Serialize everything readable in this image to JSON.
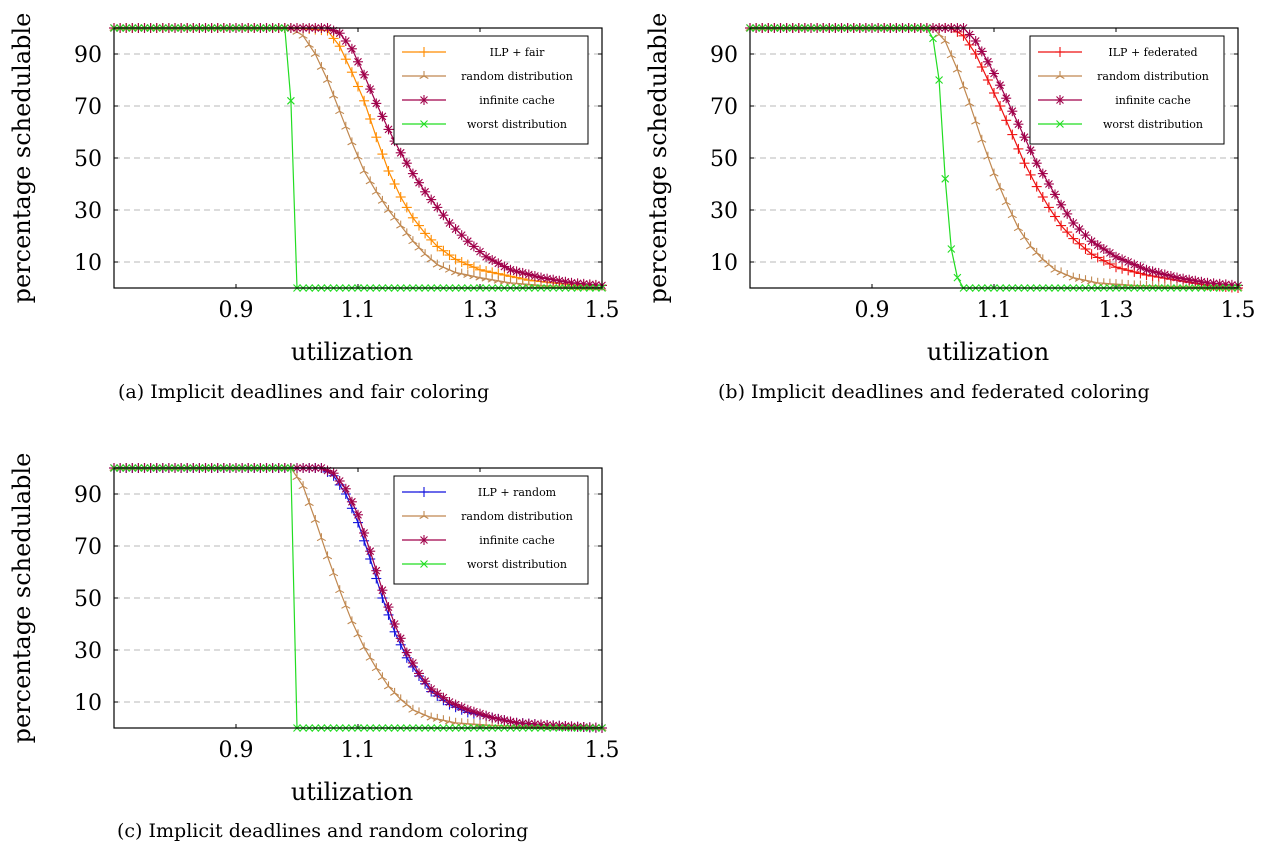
{
  "chart_data": [
    {
      "type": "line",
      "caption": "(a) Implicit deadlines and fair coloring",
      "xlabel": "utilization",
      "ylabel": "percentage schedulable",
      "xlim": [
        0.7,
        1.5
      ],
      "ylim": [
        0,
        100
      ],
      "xticks": [
        "0.9",
        "1.1",
        "1.3",
        "1.5"
      ],
      "yticks": [
        "10",
        "30",
        "50",
        "70",
        "90"
      ],
      "grid": "horizontal dashed",
      "legend_position": "top-right",
      "series": [
        {
          "name": "ILP + fair",
          "color": "#ff8c00",
          "marker": "plus",
          "points": [
            [
              0.7,
              100
            ],
            [
              1.0,
              100
            ],
            [
              1.05,
              99
            ],
            [
              1.07,
              93
            ],
            [
              1.09,
              83
            ],
            [
              1.11,
              72
            ],
            [
              1.13,
              58
            ],
            [
              1.15,
              45
            ],
            [
              1.17,
              35
            ],
            [
              1.19,
              27
            ],
            [
              1.21,
              21
            ],
            [
              1.23,
              16
            ],
            [
              1.26,
              11
            ],
            [
              1.3,
              7
            ],
            [
              1.34,
              5
            ],
            [
              1.38,
              3
            ],
            [
              1.42,
              2
            ],
            [
              1.46,
              1
            ],
            [
              1.5,
              1
            ]
          ]
        },
        {
          "name": "random distribution",
          "color": "#c08850",
          "marker": "star3",
          "points": [
            [
              0.7,
              100
            ],
            [
              0.99,
              100
            ],
            [
              1.01,
              97
            ],
            [
              1.03,
              90
            ],
            [
              1.05,
              80
            ],
            [
              1.07,
              68
            ],
            [
              1.09,
              56
            ],
            [
              1.11,
              45
            ],
            [
              1.13,
              37
            ],
            [
              1.15,
              30
            ],
            [
              1.17,
              24
            ],
            [
              1.19,
              18
            ],
            [
              1.21,
              13
            ],
            [
              1.23,
              9
            ],
            [
              1.26,
              6
            ],
            [
              1.3,
              4
            ],
            [
              1.35,
              2
            ],
            [
              1.4,
              1
            ],
            [
              1.5,
              0
            ]
          ]
        },
        {
          "name": "infinite cache",
          "color": "#a0004a",
          "marker": "star",
          "points": [
            [
              0.7,
              100
            ],
            [
              1.05,
              100
            ],
            [
              1.07,
              98
            ],
            [
              1.09,
              92
            ],
            [
              1.11,
              82
            ],
            [
              1.13,
              71
            ],
            [
              1.15,
              61
            ],
            [
              1.17,
              52
            ],
            [
              1.19,
              44
            ],
            [
              1.21,
              37
            ],
            [
              1.23,
              31
            ],
            [
              1.25,
              25
            ],
            [
              1.28,
              18
            ],
            [
              1.31,
              12
            ],
            [
              1.35,
              7
            ],
            [
              1.4,
              4
            ],
            [
              1.45,
              2
            ],
            [
              1.5,
              1
            ]
          ]
        },
        {
          "name": "worst distribution",
          "color": "#22dd22",
          "marker": "cross",
          "points": [
            [
              0.7,
              100
            ],
            [
              0.98,
              100
            ],
            [
              0.99,
              72
            ],
            [
              1.0,
              0
            ],
            [
              1.5,
              0
            ]
          ]
        }
      ]
    },
    {
      "type": "line",
      "caption": "(b) Implicit deadlines and federated coloring",
      "xlabel": "utilization",
      "ylabel": "percentage schedulable",
      "xlim": [
        0.7,
        1.5
      ],
      "ylim": [
        0,
        100
      ],
      "xticks": [
        "0.9",
        "1.1",
        "1.3",
        "1.5"
      ],
      "yticks": [
        "10",
        "30",
        "50",
        "70",
        "90"
      ],
      "grid": "horizontal dashed",
      "legend_position": "top-right",
      "series": [
        {
          "name": "ILP + federated",
          "color": "#ee1111",
          "marker": "plus",
          "points": [
            [
              0.7,
              100
            ],
            [
              1.03,
              100
            ],
            [
              1.05,
              97
            ],
            [
              1.07,
              90
            ],
            [
              1.09,
              80
            ],
            [
              1.11,
              70
            ],
            [
              1.13,
              59
            ],
            [
              1.15,
              48
            ],
            [
              1.17,
              39
            ],
            [
              1.19,
              31
            ],
            [
              1.21,
              24
            ],
            [
              1.23,
              19
            ],
            [
              1.26,
              13
            ],
            [
              1.3,
              8
            ],
            [
              1.35,
              5
            ],
            [
              1.4,
              3
            ],
            [
              1.45,
              1
            ],
            [
              1.5,
              0
            ]
          ]
        },
        {
          "name": "random distribution",
          "color": "#c08850",
          "marker": "star3",
          "points": [
            [
              0.7,
              100
            ],
            [
              1.0,
              100
            ],
            [
              1.02,
              95
            ],
            [
              1.04,
              84
            ],
            [
              1.06,
              71
            ],
            [
              1.08,
              57
            ],
            [
              1.1,
              44
            ],
            [
              1.12,
              33
            ],
            [
              1.14,
              23
            ],
            [
              1.16,
              16
            ],
            [
              1.18,
              11
            ],
            [
              1.2,
              7
            ],
            [
              1.23,
              4
            ],
            [
              1.27,
              2
            ],
            [
              1.33,
              1
            ],
            [
              1.5,
              0
            ]
          ]
        },
        {
          "name": "infinite cache",
          "color": "#a0004a",
          "marker": "star",
          "points": [
            [
              0.7,
              100
            ],
            [
              1.05,
              100
            ],
            [
              1.07,
              95
            ],
            [
              1.09,
              87
            ],
            [
              1.11,
              78
            ],
            [
              1.13,
              68
            ],
            [
              1.15,
              58
            ],
            [
              1.17,
              48
            ],
            [
              1.19,
              40
            ],
            [
              1.21,
              32
            ],
            [
              1.23,
              25
            ],
            [
              1.26,
              18
            ],
            [
              1.3,
              12
            ],
            [
              1.35,
              7
            ],
            [
              1.4,
              4
            ],
            [
              1.45,
              2
            ],
            [
              1.5,
              1
            ]
          ]
        },
        {
          "name": "worst distribution",
          "color": "#22dd22",
          "marker": "cross",
          "points": [
            [
              0.7,
              100
            ],
            [
              0.99,
              100
            ],
            [
              1.0,
              96
            ],
            [
              1.01,
              80
            ],
            [
              1.02,
              42
            ],
            [
              1.03,
              15
            ],
            [
              1.04,
              4
            ],
            [
              1.05,
              0
            ],
            [
              1.5,
              0
            ]
          ]
        }
      ]
    },
    {
      "type": "line",
      "caption": "(c) Implicit deadlines and random coloring",
      "xlabel": "utilization",
      "ylabel": "percentage schedulable",
      "xlim": [
        0.7,
        1.5
      ],
      "ylim": [
        0,
        100
      ],
      "xticks": [
        "0.9",
        "1.1",
        "1.3",
        "1.5"
      ],
      "yticks": [
        "10",
        "30",
        "50",
        "70",
        "90"
      ],
      "grid": "horizontal dashed",
      "legend_position": "top-right",
      "series": [
        {
          "name": "ILP + random",
          "color": "#1111dd",
          "marker": "plus",
          "points": [
            [
              0.7,
              100
            ],
            [
              1.04,
              100
            ],
            [
              1.06,
              97
            ],
            [
              1.08,
              90
            ],
            [
              1.1,
              79
            ],
            [
              1.12,
              65
            ],
            [
              1.14,
              50
            ],
            [
              1.16,
              37
            ],
            [
              1.18,
              27
            ],
            [
              1.2,
              20
            ],
            [
              1.22,
              14
            ],
            [
              1.25,
              9
            ],
            [
              1.28,
              6
            ],
            [
              1.32,
              4
            ],
            [
              1.36,
              2
            ],
            [
              1.42,
              1
            ],
            [
              1.5,
              0
            ]
          ]
        },
        {
          "name": "random distribution",
          "color": "#c08850",
          "marker": "star3",
          "points": [
            [
              0.7,
              100
            ],
            [
              0.99,
              100
            ],
            [
              1.01,
              93
            ],
            [
              1.03,
              80
            ],
            [
              1.05,
              66
            ],
            [
              1.07,
              53
            ],
            [
              1.09,
              41
            ],
            [
              1.11,
              31
            ],
            [
              1.13,
              23
            ],
            [
              1.15,
              16
            ],
            [
              1.17,
              11
            ],
            [
              1.19,
              7
            ],
            [
              1.22,
              4
            ],
            [
              1.26,
              2
            ],
            [
              1.32,
              1
            ],
            [
              1.5,
              0
            ]
          ]
        },
        {
          "name": "infinite cache",
          "color": "#a0004a",
          "marker": "star",
          "points": [
            [
              0.7,
              100
            ],
            [
              1.04,
              100
            ],
            [
              1.06,
              98
            ],
            [
              1.08,
              92
            ],
            [
              1.1,
              82
            ],
            [
              1.12,
              68
            ],
            [
              1.14,
              53
            ],
            [
              1.16,
              40
            ],
            [
              1.18,
              29
            ],
            [
              1.2,
              21
            ],
            [
              1.22,
              15
            ],
            [
              1.25,
              10
            ],
            [
              1.28,
              7
            ],
            [
              1.32,
              4
            ],
            [
              1.36,
              2
            ],
            [
              1.42,
              1
            ],
            [
              1.5,
              0
            ]
          ]
        },
        {
          "name": "worst distribution",
          "color": "#22dd22",
          "marker": "cross",
          "points": [
            [
              0.7,
              100
            ],
            [
              0.99,
              100
            ],
            [
              1.0,
              0
            ],
            [
              1.5,
              0
            ]
          ]
        }
      ]
    }
  ]
}
